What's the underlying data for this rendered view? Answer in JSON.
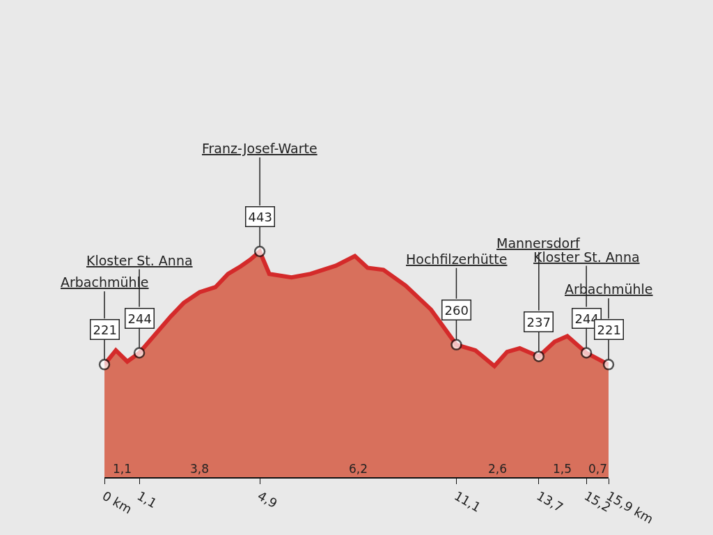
{
  "chart_data": {
    "type": "area",
    "x": [
      0,
      0.36,
      0.72,
      1.1,
      2.1,
      2.5,
      3.0,
      3.5,
      3.9,
      4.3,
      4.6,
      4.9,
      5.2,
      5.9,
      6.5,
      7.3,
      7.9,
      8.3,
      8.8,
      9.5,
      10.3,
      11.1,
      11.7,
      12.3,
      12.7,
      13.1,
      13.7,
      14.2,
      14.6,
      15.2,
      15.9
    ],
    "series": [
      {
        "color": "#d8705c",
        "values": [
          221,
          249,
          227,
          244,
          316,
          342,
          363,
          373,
          399,
          414,
          427,
          443,
          399,
          392,
          399,
          415,
          434,
          411,
          407,
          376,
          329,
          260,
          249,
          218,
          246,
          253,
          237,
          266,
          277,
          244,
          221
        ],
        "value_labels": [
          "221",
          null,
          null,
          "244",
          null,
          null,
          null,
          null,
          null,
          null,
          null,
          "443",
          null,
          null,
          null,
          null,
          null,
          null,
          null,
          null,
          null,
          "260",
          null,
          null,
          null,
          null,
          "237",
          null,
          null,
          "244",
          "221"
        ]
      }
    ],
    "xlim": [
      0,
      15.9
    ],
    "xticks": [
      {
        "value": 0,
        "label": "0 km"
      },
      {
        "value": 1.1,
        "label": "1,1"
      },
      {
        "value": 4.9,
        "label": "4,9"
      },
      {
        "value": 11.1,
        "label": "11,1"
      },
      {
        "value": 13.7,
        "label": "13,7"
      },
      {
        "value": 15.2,
        "label": "15,2"
      },
      {
        "value": 15.9,
        "label": "15,9 km"
      }
    ],
    "tick_labels": "x",
    "annotations": [
      {
        "text": "Arbachmühle",
        "x": 0,
        "y": 221
      },
      {
        "text": "Kloster St. Anna",
        "x": 1.1,
        "y": 244
      },
      {
        "text": "Franz-Josef-Warte",
        "x": 4.9,
        "y": 443
      },
      {
        "text": "Hochfilzerhütte",
        "x": 11.1,
        "y": 260
      },
      {
        "text": "Mannersdorf",
        "x": 13.7,
        "y": 237
      },
      {
        "text": "Kloster St. Anna",
        "x": 15.2,
        "y": 244
      },
      {
        "text": "Arbachmühle",
        "x": 15.9,
        "y": 221
      },
      "1,1",
      "3,8",
      "6,2",
      "2,6",
      "1,5",
      "0,7"
    ]
  }
}
